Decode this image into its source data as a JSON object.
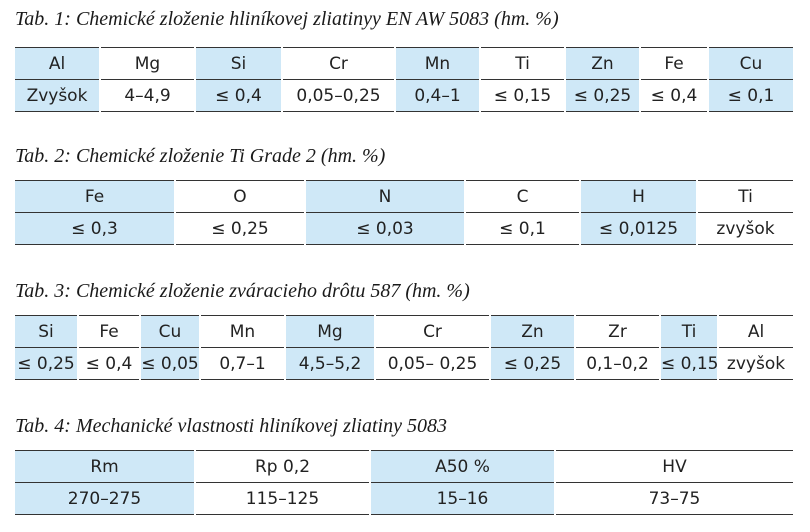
{
  "tables": [
    {
      "title": "Tab. 1: Chemické zloženie hliníkovej zliatinyy EN AW 5083 (hm. %)",
      "header": [
        "Al",
        "Mg",
        "Si",
        "Cr",
        "Mn",
        "Ti",
        "Zn",
        "Fe",
        "Cu"
      ],
      "row": [
        "Zvyšok",
        "4–4,9",
        "≤ 0,4",
        "0,05–0,25",
        "0,4–1",
        "≤ 0,15",
        "≤ 0,25",
        "≤ 0,4",
        "≤ 0,1"
      ]
    },
    {
      "title": "Tab. 2: Chemické zloženie Ti Grade 2 (hm. %)",
      "header": [
        "Fe",
        "O",
        "N",
        "C",
        "H",
        "Ti"
      ],
      "row": [
        "≤ 0,3",
        "≤ 0,25",
        "≤ 0,03",
        "≤ 0,1",
        "≤ 0,0125",
        "zvyšok"
      ]
    },
    {
      "title": "Tab. 3: Chemické zloženie zváracieho drôtu 587 (hm. %)",
      "header": [
        "Si",
        "Fe",
        "Cu",
        "Mn",
        "Mg",
        "Cr",
        "Zn",
        "Zr",
        "Ti",
        "Al"
      ],
      "row": [
        "≤ 0,25",
        "≤ 0,4",
        "≤ 0,05",
        "0,7–1",
        "4,5–5,2",
        "0,05– 0,25",
        "≤ 0,25",
        "0,1–0,2",
        "≤ 0,15",
        "zvyšok"
      ]
    },
    {
      "title": "Tab. 4: Mechanické vlastnosti hliníkovej zliatiny 5083",
      "header": [
        "Rm",
        "Rp 0,2",
        "A50 %",
        "HV"
      ],
      "row": [
        "270–275",
        "115–125",
        "15–16",
        "73–75"
      ]
    }
  ]
}
